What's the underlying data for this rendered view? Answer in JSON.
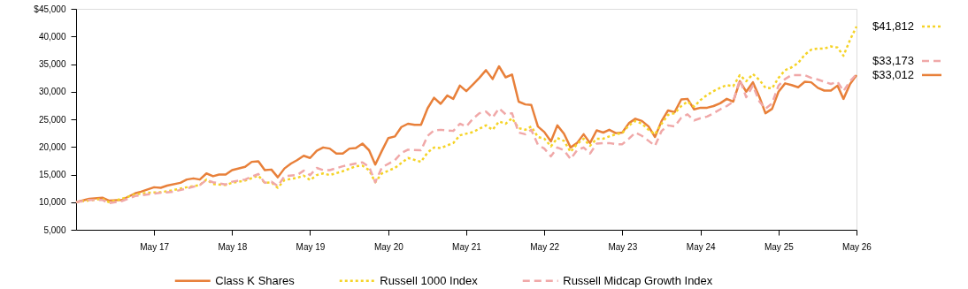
{
  "chart_data": {
    "type": "line",
    "xlim": [
      "2016-05",
      "2026-05"
    ],
    "xticks": [
      {
        "value": "2017-05",
        "label": "May 17"
      },
      {
        "value": "2018-05",
        "label": "May 18"
      },
      {
        "value": "2019-05",
        "label": "May 19"
      },
      {
        "value": "2020-05",
        "label": "May 20"
      },
      {
        "value": "2021-05",
        "label": "May 21"
      },
      {
        "value": "2022-05",
        "label": "May 22"
      },
      {
        "value": "2023-05",
        "label": "May 23"
      },
      {
        "value": "2024-05",
        "label": "May 24"
      },
      {
        "value": "2025-05",
        "label": "May 25"
      },
      {
        "value": "2026-05",
        "label": "May 26"
      }
    ],
    "ylim": [
      5000,
      45000
    ],
    "yticks": [
      {
        "value": 5000,
        "label": "5,000"
      },
      {
        "value": 10000,
        "label": "10,000"
      },
      {
        "value": 15000,
        "label": "15,000"
      },
      {
        "value": 20000,
        "label": "20,000"
      },
      {
        "value": 25000,
        "label": "25,000"
      },
      {
        "value": 30000,
        "label": "30,000"
      },
      {
        "value": 35000,
        "label": "35,000"
      },
      {
        "value": 40000,
        "label": "40,000"
      },
      {
        "value": 45000,
        "label": "$45,000"
      }
    ],
    "grid": false,
    "legend": "bottom",
    "series": [
      {
        "name": "Class K Shares",
        "color": "#e8803a",
        "line_style": "solid",
        "x": [
          "2016-05",
          "2016-07",
          "2016-09",
          "2016-10",
          "2016-12",
          "2017-02",
          "2017-03",
          "2017-05",
          "2017-06",
          "2017-07",
          "2017-09",
          "2017-10",
          "2017-11",
          "2017-12",
          "2018-01",
          "2018-02",
          "2018-03",
          "2018-04",
          "2018-05",
          "2018-07",
          "2018-08",
          "2018-09",
          "2018-10",
          "2018-11",
          "2018-12",
          "2019-01",
          "2019-02",
          "2019-03",
          "2019-04",
          "2019-05",
          "2019-06",
          "2019-07",
          "2019-08",
          "2019-09",
          "2019-10",
          "2019-11",
          "2019-12",
          "2020-01",
          "2020-02",
          "2020-03",
          "2020-04",
          "2020-05",
          "2020-06",
          "2020-07",
          "2020-08",
          "2020-09",
          "2020-10",
          "2020-11",
          "2020-12",
          "2021-01",
          "2021-02",
          "2021-03",
          "2021-04",
          "2021-05",
          "2021-06",
          "2021-07",
          "2021-08",
          "2021-09",
          "2021-10",
          "2021-11",
          "2021-12",
          "2022-01",
          "2022-02",
          "2022-03",
          "2022-04",
          "2022-05",
          "2022-06",
          "2022-07",
          "2022-08",
          "2022-09",
          "2022-10",
          "2022-11",
          "2022-12",
          "2023-01",
          "2023-02",
          "2023-03",
          "2023-04",
          "2023-05",
          "2023-06",
          "2023-07",
          "2023-08",
          "2023-09",
          "2023-10",
          "2023-11",
          "2023-12",
          "2024-01",
          "2024-02",
          "2024-03",
          "2024-04",
          "2024-05",
          "2024-06",
          "2024-07",
          "2024-08",
          "2024-09",
          "2024-10",
          "2024-11",
          "2024-12",
          "2025-01",
          "2025-02",
          "2025-03",
          "2025-04",
          "2025-05",
          "2025-06",
          "2025-07",
          "2025-08",
          "2025-09",
          "2025-10",
          "2025-11",
          "2025-12",
          "2026-01",
          "2026-02",
          "2026-03",
          "2026-04",
          "2026-05"
        ],
        "values": [
          10000,
          10600,
          10800,
          10300,
          10400,
          11600,
          11900,
          12700,
          12600,
          13000,
          13500,
          14100,
          14300,
          14100,
          15200,
          14700,
          15000,
          15000,
          15800,
          16400,
          17300,
          17400,
          15800,
          15900,
          14500,
          16100,
          17000,
          17600,
          18400,
          18000,
          19300,
          19900,
          19700,
          18800,
          18800,
          19700,
          19800,
          20600,
          19400,
          16800,
          19300,
          21600,
          21900,
          23600,
          24200,
          24000,
          24000,
          27000,
          28900,
          27800,
          29300,
          28700,
          31100,
          30100,
          31300,
          32500,
          33900,
          32300,
          34600,
          32600,
          33100,
          28200,
          27700,
          27600,
          23700,
          22700,
          21000,
          23900,
          22400,
          19900,
          20700,
          22300,
          20700,
          23000,
          22600,
          23100,
          22500,
          22600,
          24300,
          25100,
          24700,
          23700,
          21800,
          24700,
          26600,
          26300,
          28600,
          28700,
          26800,
          27100,
          27100,
          27400,
          27900,
          28700,
          28200,
          31900,
          30000,
          31700,
          29000,
          26100,
          26900,
          30000,
          31500,
          31200,
          30800,
          31800,
          31700,
          30700,
          30200,
          30200,
          31100,
          28700,
          31400,
          33012
        ]
      },
      {
        "name": "Russell 1000 Index",
        "color": "#f5d327",
        "line_style": "dotted",
        "x": [
          "2016-05",
          "2016-07",
          "2016-09",
          "2016-10",
          "2016-12",
          "2017-02",
          "2017-04",
          "2017-06",
          "2017-08",
          "2017-10",
          "2017-12",
          "2018-01",
          "2018-02",
          "2018-04",
          "2018-05",
          "2018-07",
          "2018-09",
          "2018-10",
          "2018-11",
          "2018-12",
          "2019-01",
          "2019-03",
          "2019-04",
          "2019-05",
          "2019-06",
          "2019-07",
          "2019-08",
          "2019-10",
          "2019-12",
          "2020-01",
          "2020-02",
          "2020-03",
          "2020-04",
          "2020-06",
          "2020-08",
          "2020-10",
          "2020-11",
          "2020-12",
          "2021-01",
          "2021-03",
          "2021-04",
          "2021-06",
          "2021-08",
          "2021-09",
          "2021-10",
          "2021-11",
          "2021-12",
          "2022-01",
          "2022-02",
          "2022-03",
          "2022-04",
          "2022-05",
          "2022-06",
          "2022-07",
          "2022-08",
          "2022-09",
          "2022-10",
          "2022-11",
          "2022-12",
          "2023-01",
          "2023-02",
          "2023-03",
          "2023-04",
          "2023-05",
          "2023-06",
          "2023-07",
          "2023-08",
          "2023-09",
          "2023-10",
          "2023-11",
          "2023-12",
          "2024-01",
          "2024-02",
          "2024-03",
          "2024-04",
          "2024-05",
          "2024-06",
          "2024-07",
          "2024-08",
          "2024-09",
          "2024-10",
          "2024-11",
          "2024-12",
          "2025-01",
          "2025-02",
          "2025-03",
          "2025-04",
          "2025-05",
          "2025-06",
          "2025-07",
          "2025-08",
          "2025-09",
          "2025-10",
          "2025-11",
          "2025-12",
          "2026-01",
          "2026-02",
          "2026-03",
          "2026-04",
          "2026-05"
        ],
        "values": [
          10000,
          10300,
          10600,
          10000,
          10600,
          11400,
          11700,
          11800,
          12200,
          12700,
          13100,
          14100,
          13300,
          13100,
          13500,
          13900,
          14800,
          13500,
          13600,
          12600,
          14000,
          14400,
          14800,
          14000,
          14900,
          15200,
          14900,
          15600,
          16500,
          16600,
          15800,
          13600,
          15200,
          16200,
          18000,
          17300,
          19000,
          19900,
          19800,
          20700,
          22100,
          22700,
          23900,
          23100,
          24600,
          24200,
          25200,
          23400,
          23100,
          23700,
          21800,
          21500,
          20100,
          21600,
          21100,
          19100,
          20500,
          21500,
          20200,
          21500,
          21500,
          21900,
          22300,
          22500,
          23900,
          24700,
          24200,
          23100,
          22300,
          24200,
          25800,
          26100,
          27400,
          28200,
          27300,
          28500,
          29400,
          30100,
          30700,
          31200,
          31000,
          33000,
          31900,
          33200,
          32100,
          30700,
          30600,
          32500,
          33900,
          34400,
          35200,
          36700,
          37600,
          37800,
          37800,
          38200,
          38000,
          36500,
          39400,
          41812
        ]
      },
      {
        "name": "Russell Midcap Growth Index",
        "color": "#f0a8a8",
        "line_style": "dashed",
        "x": [
          "2016-05",
          "2016-07",
          "2016-09",
          "2016-10",
          "2016-12",
          "2017-02",
          "2017-04",
          "2017-06",
          "2017-08",
          "2017-10",
          "2017-12",
          "2018-01",
          "2018-02",
          "2018-04",
          "2018-05",
          "2018-07",
          "2018-09",
          "2018-10",
          "2018-11",
          "2018-12",
          "2019-01",
          "2019-03",
          "2019-04",
          "2019-05",
          "2019-06",
          "2019-07",
          "2019-08",
          "2019-10",
          "2019-12",
          "2020-01",
          "2020-02",
          "2020-03",
          "2020-04",
          "2020-06",
          "2020-07",
          "2020-08",
          "2020-10",
          "2020-11",
          "2020-12",
          "2021-01",
          "2021-03",
          "2021-04",
          "2021-05",
          "2021-06",
          "2021-07",
          "2021-08",
          "2021-09",
          "2021-10",
          "2021-11",
          "2021-12",
          "2022-01",
          "2022-02",
          "2022-03",
          "2022-04",
          "2022-05",
          "2022-06",
          "2022-07",
          "2022-08",
          "2022-09",
          "2022-10",
          "2022-11",
          "2022-12",
          "2023-01",
          "2023-02",
          "2023-03",
          "2023-04",
          "2023-05",
          "2023-06",
          "2023-07",
          "2023-08",
          "2023-09",
          "2023-10",
          "2023-11",
          "2023-12",
          "2024-01",
          "2024-02",
          "2024-03",
          "2024-04",
          "2024-05",
          "2024-06",
          "2024-07",
          "2024-08",
          "2024-09",
          "2024-10",
          "2024-11",
          "2024-12",
          "2025-01",
          "2025-02",
          "2025-03",
          "2025-04",
          "2025-05",
          "2025-06",
          "2025-07",
          "2025-08",
          "2025-09",
          "2025-10",
          "2025-11",
          "2025-12",
          "2026-01",
          "2026-02",
          "2026-03",
          "2026-04",
          "2026-05"
        ],
        "values": [
          10000,
          10400,
          10400,
          9800,
          10200,
          11100,
          11400,
          11700,
          11900,
          12500,
          13100,
          14000,
          13600,
          13200,
          13700,
          14100,
          15100,
          13500,
          13700,
          12900,
          14700,
          14900,
          15700,
          14900,
          16200,
          15800,
          15800,
          16500,
          17000,
          17200,
          16400,
          13600,
          16300,
          17600,
          18900,
          19500,
          19400,
          22000,
          23000,
          23100,
          22900,
          24200,
          23700,
          25100,
          26100,
          26400,
          25300,
          27000,
          25900,
          26100,
          22600,
          22300,
          23100,
          20400,
          19700,
          18300,
          19900,
          19400,
          17800,
          19400,
          19900,
          18800,
          20600,
          20700,
          20700,
          20500,
          20500,
          21500,
          22600,
          22000,
          21100,
          20200,
          22900,
          23900,
          23700,
          25300,
          25900,
          24800,
          25200,
          25500,
          26100,
          26800,
          27400,
          28200,
          32200,
          29000,
          31100,
          28200,
          26900,
          27900,
          31100,
          32300,
          33000,
          33000,
          33000,
          32500,
          32200,
          31800,
          31400,
          31800,
          30100,
          31900,
          33173
        ]
      }
    ],
    "annotations": [
      {
        "text": "$41,812",
        "x": "2026-05",
        "y": 41812
      },
      {
        "text": "$33,173",
        "x": "2026-05",
        "y": 33173
      },
      {
        "text": "$33,012",
        "x": "2026-05",
        "y": 33012
      }
    ]
  }
}
